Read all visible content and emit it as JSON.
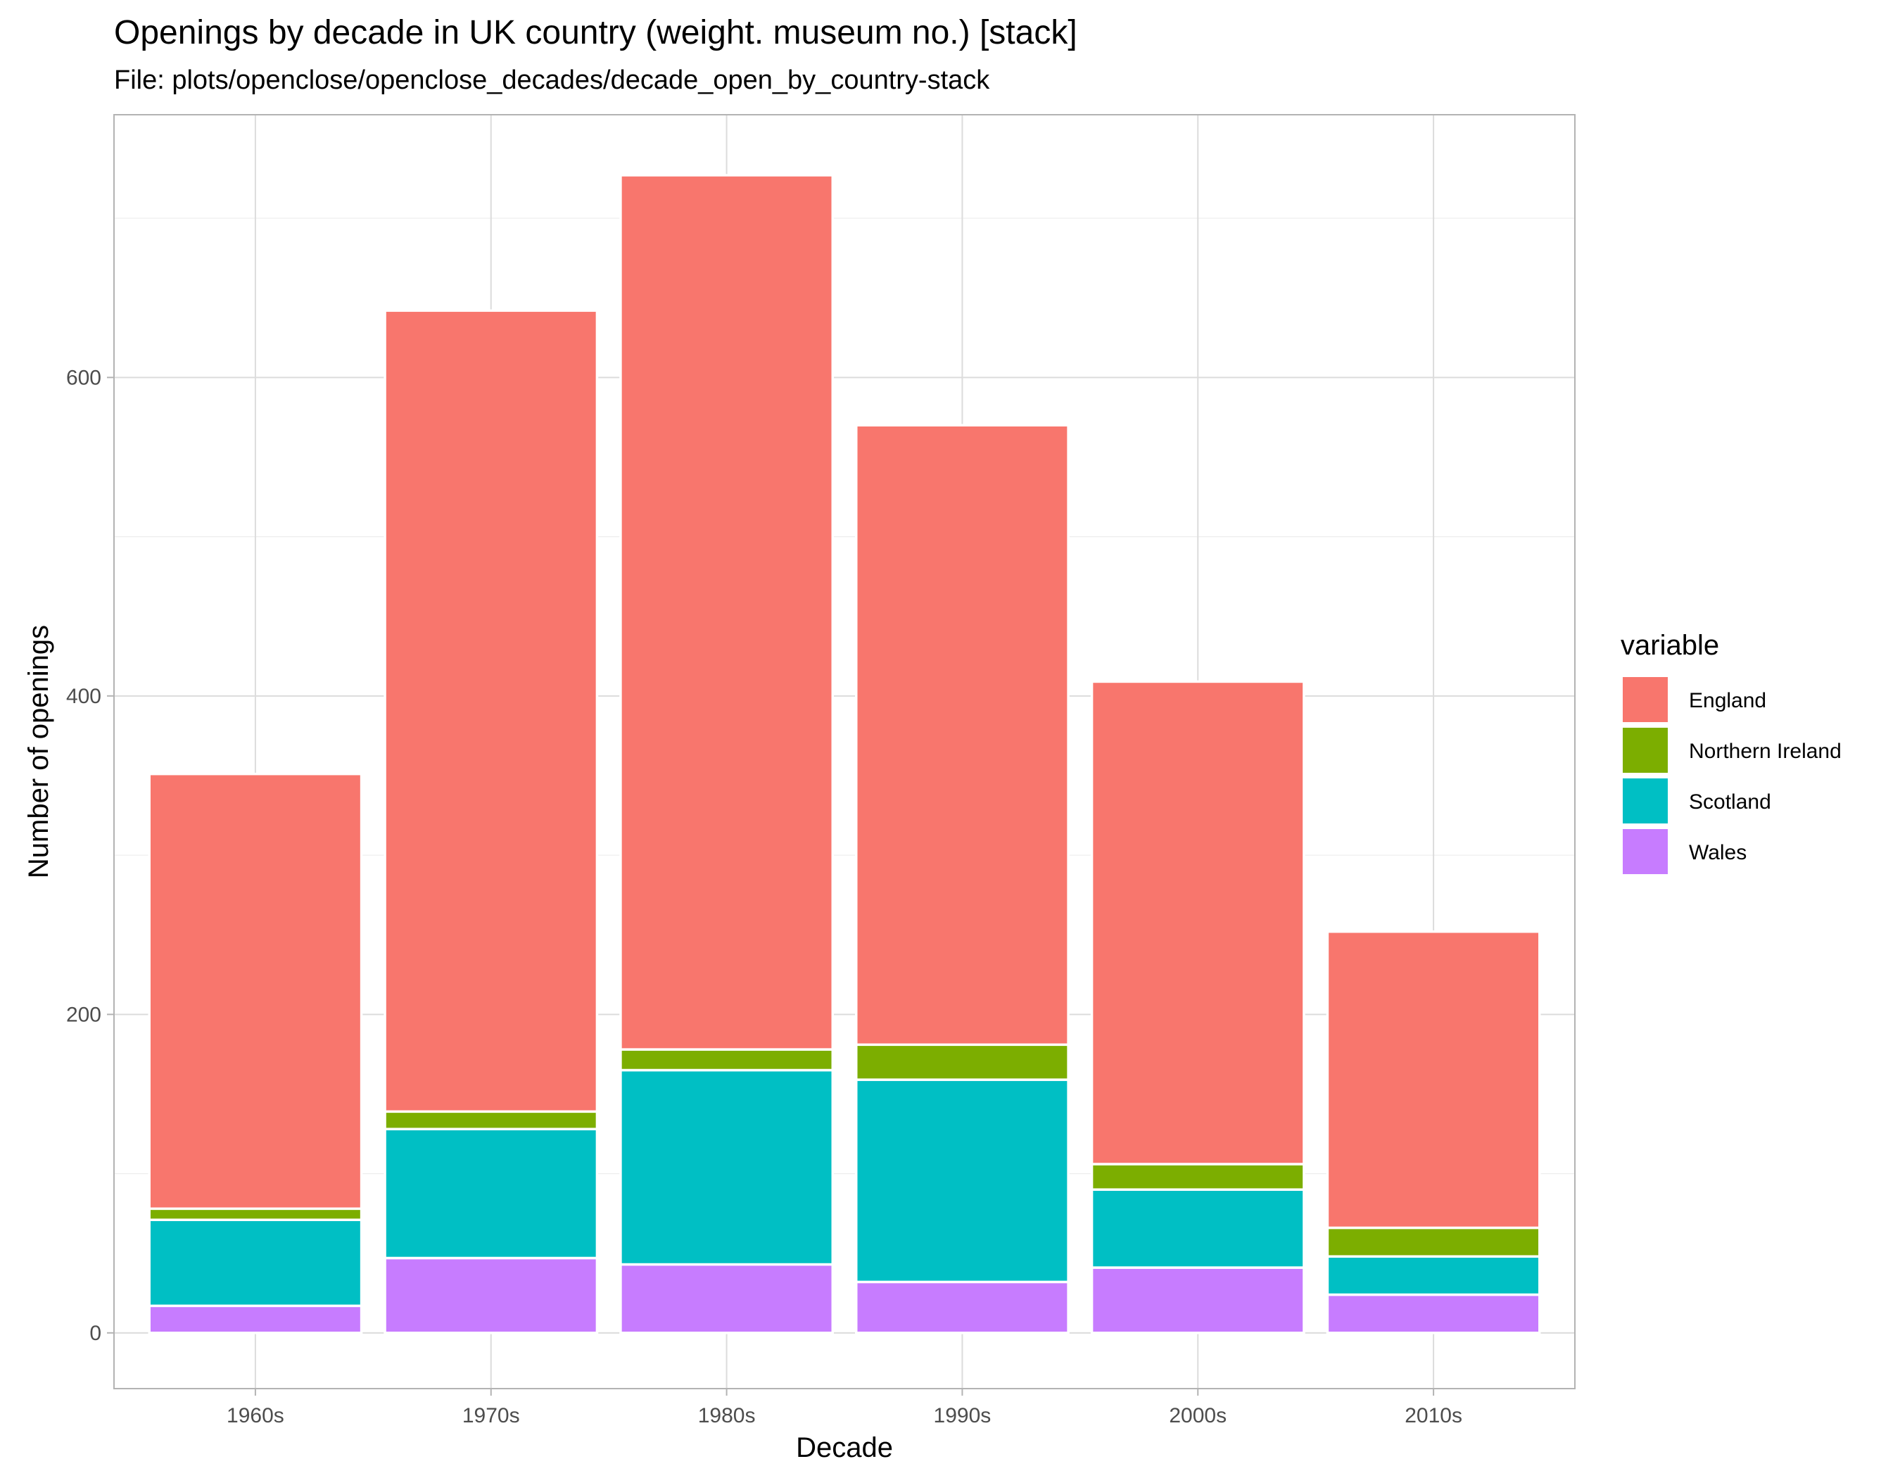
{
  "chart_data": {
    "type": "bar",
    "stacked": true,
    "title": "Openings by decade in UK country (weight. museum no.) [stack]",
    "subtitle": "File: plots/openclose/openclose_decades/decade_open_by_country-stack",
    "xlabel": "Decade",
    "ylabel": "Number of openings",
    "categories": [
      "1960s",
      "1970s",
      "1980s",
      "1990s",
      "2000s",
      "2010s"
    ],
    "ylim": [
      -35,
      765
    ],
    "yticks": [
      0,
      200,
      400,
      600
    ],
    "grid": true,
    "legend": {
      "title": "variable",
      "position": "right"
    },
    "stack_order_bottom_to_top": [
      "Wales",
      "Scotland",
      "Northern Ireland",
      "England"
    ],
    "series": [
      {
        "name": "England",
        "color": "#F8766D",
        "values": [
          273,
          503,
          549,
          389,
          303,
          186
        ]
      },
      {
        "name": "Northern Ireland",
        "color": "#7CAE00",
        "values": [
          7,
          11,
          13,
          22,
          16,
          18
        ]
      },
      {
        "name": "Scotland",
        "color": "#00BFC4",
        "values": [
          54,
          81,
          122,
          127,
          49,
          24
        ]
      },
      {
        "name": "Wales",
        "color": "#C77CFF",
        "values": [
          17,
          47,
          43,
          32,
          41,
          24
        ]
      }
    ]
  }
}
